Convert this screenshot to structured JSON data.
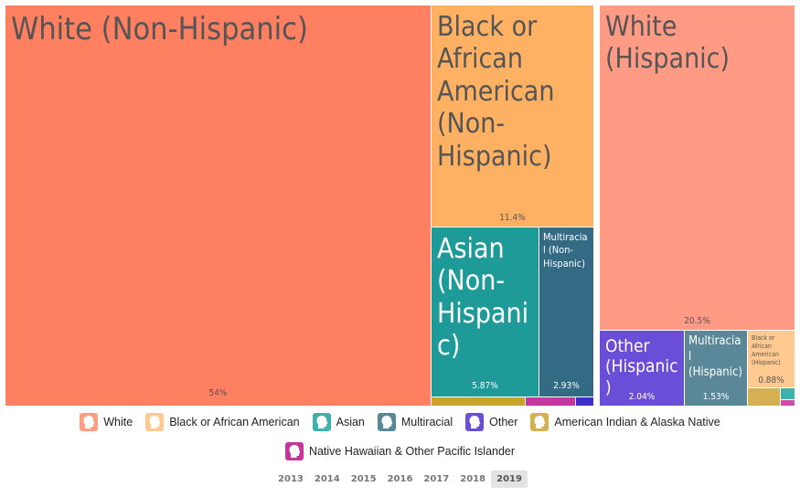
{
  "chart_data": {
    "type": "treemap",
    "total_label": "",
    "groups": [
      {
        "name": "White",
        "color": "#ff8a6a"
      },
      {
        "name": "Black or African American",
        "color": "#ffb163"
      },
      {
        "name": "Asian",
        "color": "#1e9b98"
      },
      {
        "name": "Multiracial",
        "color": "#336a84"
      },
      {
        "name": "Other",
        "color": "#6a4ed7"
      },
      {
        "name": "American Indian & Alaska Native",
        "color": "#c9a42a"
      },
      {
        "name": "Native Hawaiian & Other Pacific Islander",
        "color": "#c5359b"
      }
    ],
    "tiles": [
      {
        "label": "White (Non-Hispanic)",
        "value": 54,
        "value_label": "54%",
        "group": "White"
      },
      {
        "label": "Black or African American (Non-Hispanic)",
        "value": 11.4,
        "value_label": "11.4%",
        "group": "Black or African American"
      },
      {
        "label": "Asian (Non-Hispanic)",
        "value": 5.87,
        "value_label": "5.87%",
        "group": "Asian"
      },
      {
        "label": "Multiracial (Non-Hispanic)",
        "value": 2.93,
        "value_label": "2.93%",
        "group": "Multiracial"
      },
      {
        "label": "",
        "value": 0.6,
        "value_label": "",
        "group": "American Indian & Alaska Native"
      },
      {
        "label": "",
        "value": 0.3,
        "value_label": "",
        "group": "Native Hawaiian & Other Pacific Islander"
      },
      {
        "label": "",
        "value": 0.1,
        "value_label": "",
        "group": "Other"
      },
      {
        "label": "White (Hispanic)",
        "value": 20.5,
        "value_label": "20.5%",
        "group": "White"
      },
      {
        "label": "Other (Hispanic)",
        "value": 2.04,
        "value_label": "2.04%",
        "group": "Other"
      },
      {
        "label": "Multiracial (Hispanic)",
        "value": 1.53,
        "value_label": "1.53%",
        "group": "Multiracial"
      },
      {
        "label": "Black or African American (Hispanic)",
        "value": 0.88,
        "value_label": "0.88%",
        "group": "Black or African American"
      },
      {
        "label": "",
        "value": 0.3,
        "value_label": "",
        "group": "American Indian & Alaska Native"
      },
      {
        "label": "",
        "value": 0.1,
        "value_label": "",
        "group": "Asian"
      },
      {
        "label": "",
        "value": 0.05,
        "value_label": "",
        "group": "Native Hawaiian & Other Pacific Islander"
      }
    ]
  },
  "legend": {
    "items": [
      {
        "label": "White",
        "color": "#ff9c84"
      },
      {
        "label": "Black or African American",
        "color": "#ffc98f"
      },
      {
        "label": "Asian",
        "color": "#3fb1ab"
      },
      {
        "label": "Multiracial",
        "color": "#5b8898"
      },
      {
        "label": "Other",
        "color": "#6a4ed7"
      },
      {
        "label": "American Indian & Alaska Native",
        "color": "#d4b050"
      },
      {
        "label": "Native Hawaiian & Other Pacific Islander",
        "color": "#c5359b"
      }
    ],
    "icon": "person-head-icon"
  },
  "years": {
    "options": [
      "2013",
      "2014",
      "2015",
      "2016",
      "2017",
      "2018",
      "2019"
    ],
    "selected": "2019"
  }
}
